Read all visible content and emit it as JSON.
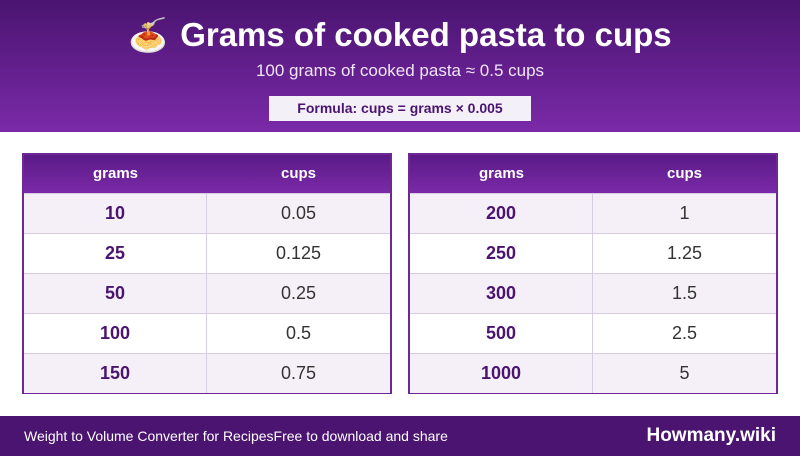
{
  "header": {
    "emoji": "🍝",
    "title": "Grams of cooked pasta to cups",
    "subtitle": "100 grams of cooked pasta ≈ 0.5 cups",
    "formula": "Formula: cups = grams × 0.005"
  },
  "tables": [
    {
      "headers": [
        "grams",
        "cups"
      ],
      "rows": [
        [
          "10",
          "0.05"
        ],
        [
          "25",
          "0.125"
        ],
        [
          "50",
          "0.25"
        ],
        [
          "100",
          "0.5"
        ],
        [
          "150",
          "0.75"
        ]
      ]
    },
    {
      "headers": [
        "grams",
        "cups"
      ],
      "rows": [
        [
          "200",
          "1"
        ],
        [
          "250",
          "1.25"
        ],
        [
          "300",
          "1.5"
        ],
        [
          "500",
          "2.5"
        ],
        [
          "1000",
          "5"
        ]
      ]
    }
  ],
  "footer": {
    "left_text_1": "Weight to Volume Converter for Recipes",
    "left_text_2": "Free to download and share",
    "brand": "Howmany.wiki"
  },
  "colors": {
    "header_dark": "#4a1470",
    "header_light": "#7a2aa8",
    "accent": "#6e2896",
    "row_alt": "#f5f0f8"
  }
}
